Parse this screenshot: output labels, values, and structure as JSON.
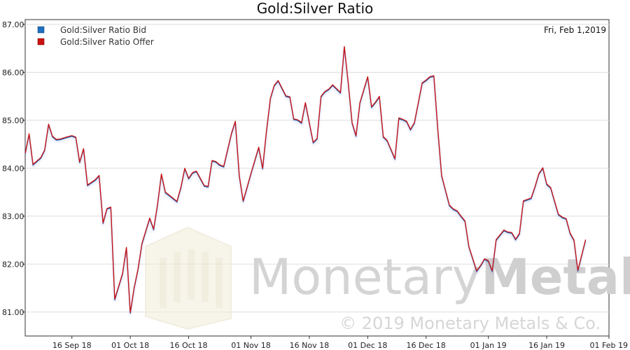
{
  "chart_data": {
    "type": "line",
    "title": "Gold:Silver Ratio",
    "date_label": "Fri, Feb 1,2019",
    "xlabel": "",
    "ylabel": "",
    "ylim": [
      80.5,
      87.1
    ],
    "y_ticks": [
      "87.00",
      "86.00",
      "85.00",
      "84.00",
      "83.00",
      "82.00",
      "81.00"
    ],
    "y_tick_values": [
      87,
      86,
      85,
      84,
      83,
      82,
      81
    ],
    "x_ticks": [
      "16 Sep 18",
      "01 Oct 18",
      "16 Oct 18",
      "01 Nov 18",
      "16 Nov 18",
      "01 Dec 18",
      "16 Dec 18",
      "01 Jan 19",
      "16 Jan 19",
      "01 Feb 19"
    ],
    "x_tick_values": [
      16,
      31,
      46,
      62,
      77,
      92,
      107,
      123,
      138,
      154
    ],
    "xlim": [
      4,
      154
    ],
    "grid": true,
    "legend_position": "top-left",
    "series": [
      {
        "name": "Gold:Silver Ratio Bid",
        "color": "#1f6fbf",
        "values": [
          84.31,
          84.72,
          84.08,
          84.22,
          84.38,
          84.92,
          84.67,
          84.6,
          84.61,
          84.66,
          84.68,
          84.65,
          84.13,
          84.41,
          83.65,
          83.76,
          83.85,
          82.86,
          83.16,
          83.19,
          81.27,
          81.8,
          82.35,
          80.99,
          81.51,
          81.9,
          82.43,
          82.96,
          82.73,
          83.24,
          83.88,
          83.5,
          83.44,
          83.31,
          83.6,
          84.0,
          83.79,
          83.91,
          83.94,
          83.64,
          83.62,
          84.16,
          84.14,
          84.07,
          84.04,
          84.73,
          84.98,
          83.85,
          83.32,
          83.6,
          83.89,
          84.44,
          84.0,
          84.78,
          85.46,
          85.73,
          85.83,
          85.51,
          85.49,
          85.03,
          85.01,
          84.95,
          85.37,
          84.54,
          84.62,
          85.5,
          85.6,
          85.65,
          85.74,
          85.58,
          86.54,
          85.78,
          84.95,
          84.68,
          85.37,
          85.91,
          85.28,
          85.38,
          85.5,
          84.66,
          84.58,
          84.2,
          85.05,
          85.02,
          84.98,
          84.81,
          84.95,
          85.78,
          85.84,
          85.91,
          85.93,
          84.82,
          83.85,
          83.23,
          83.15,
          83.11,
          83.0,
          82.9,
          82.37,
          81.86,
          81.97,
          82.11,
          82.07,
          81.86,
          82.51,
          82.71,
          82.67,
          82.66,
          82.52,
          82.64,
          83.32,
          83.38,
          83.62,
          83.89,
          84.01,
          83.67,
          83.6,
          83.04,
          82.98,
          82.95,
          82.65,
          82.5,
          81.87,
          82.51
        ]
      },
      {
        "name": "Gold:Silver Ratio Offer",
        "color": "#cc1111",
        "values": [
          84.31,
          84.72,
          84.08,
          84.22,
          84.38,
          84.92,
          84.67,
          84.6,
          84.61,
          84.66,
          84.68,
          84.65,
          84.13,
          84.41,
          83.65,
          83.76,
          83.85,
          82.86,
          83.16,
          83.19,
          81.27,
          81.8,
          82.35,
          80.99,
          81.51,
          81.9,
          82.43,
          82.96,
          82.73,
          83.24,
          83.88,
          83.5,
          83.44,
          83.31,
          83.6,
          84.0,
          83.79,
          83.91,
          83.94,
          83.64,
          83.62,
          84.16,
          84.14,
          84.07,
          84.04,
          84.73,
          84.98,
          83.85,
          83.32,
          83.6,
          83.89,
          84.44,
          84.0,
          84.78,
          85.46,
          85.73,
          85.83,
          85.51,
          85.49,
          85.03,
          85.01,
          84.95,
          85.37,
          84.54,
          84.62,
          85.5,
          85.6,
          85.65,
          85.74,
          85.58,
          86.54,
          85.78,
          84.95,
          84.68,
          85.37,
          85.91,
          85.28,
          85.38,
          85.5,
          84.66,
          84.58,
          84.2,
          85.05,
          85.02,
          84.98,
          84.81,
          84.95,
          85.78,
          85.84,
          85.91,
          85.93,
          84.82,
          83.85,
          83.23,
          83.15,
          83.11,
          83.0,
          82.9,
          82.37,
          81.86,
          81.97,
          82.11,
          82.07,
          81.86,
          82.51,
          82.71,
          82.67,
          82.66,
          82.52,
          82.64,
          83.32,
          83.38,
          83.62,
          83.89,
          84.01,
          83.67,
          83.6,
          83.04,
          82.98,
          82.95,
          82.65,
          82.5,
          81.87,
          82.51
        ]
      }
    ],
    "x": [
      4,
      5,
      6,
      8,
      9,
      10,
      11,
      12,
      13,
      15,
      16,
      17,
      18,
      19,
      20,
      22,
      23,
      24,
      25,
      26,
      27,
      29,
      30,
      31,
      32,
      33,
      34,
      36,
      37,
      38,
      39,
      40,
      41,
      43,
      44,
      45,
      46,
      47,
      48,
      50,
      51,
      52,
      53,
      54,
      55,
      57,
      58,
      59,
      60,
      61,
      62,
      64,
      65,
      66,
      67,
      68,
      69,
      71,
      72,
      73,
      74,
      75,
      76,
      78,
      79,
      80,
      81,
      82,
      83,
      85,
      86,
      87,
      88,
      89,
      90,
      92,
      93,
      94,
      95,
      96,
      97,
      99,
      100,
      101,
      102,
      103,
      104,
      106,
      107,
      108,
      109,
      110,
      111,
      113,
      114,
      115,
      116,
      117,
      118,
      120,
      121,
      122,
      123,
      124,
      125,
      127,
      128,
      129,
      130,
      131,
      132,
      134,
      135,
      136,
      137,
      138,
      139,
      141,
      142,
      143,
      144,
      145,
      146,
      148
    ]
  },
  "watermark": {
    "text": "MonetaryMetals",
    "text_light": "Monetary",
    "text_bold": "Metals",
    "copyright": "© 2019 Monetary Metals & Co."
  },
  "colors": {
    "bid": "#1f6fbf",
    "offer": "#cc1111",
    "grid": "#dddddd",
    "axis": "#333333"
  }
}
